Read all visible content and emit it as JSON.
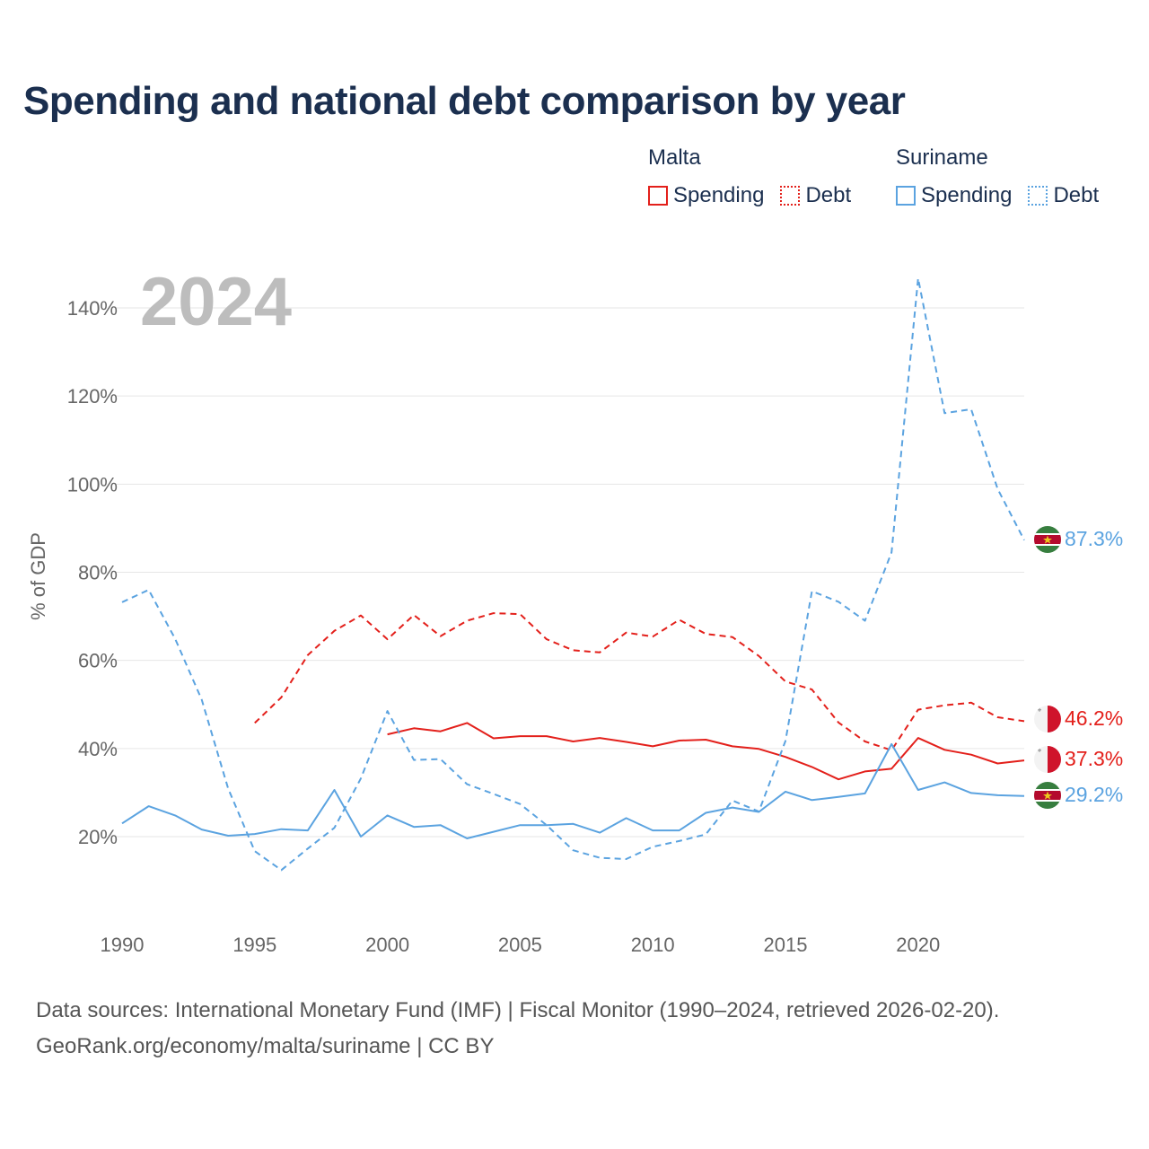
{
  "title": "Spending and national debt comparison by year",
  "legend": {
    "groups": [
      {
        "country": "Malta",
        "items": [
          {
            "label": "Spending",
            "style": "solid"
          },
          {
            "label": "Debt",
            "style": "dotted"
          }
        ],
        "color": "#e3201b"
      },
      {
        "country": "Suriname",
        "items": [
          {
            "label": "Spending",
            "style": "solid"
          },
          {
            "label": "Debt",
            "style": "dotted"
          }
        ],
        "color": "#5ba3e0"
      }
    ]
  },
  "year_watermark": "2024",
  "footer": {
    "line1": "Data sources: International Monetary Fund (IMF) | Fiscal Monitor (1990–2024, retrieved 2026-02-20).",
    "line2": "GeoRank.org/economy/malta/suriname | CC BY"
  },
  "chart_data": {
    "type": "line",
    "ylabel": "% of GDP",
    "xlabel": "",
    "xlim": [
      1990,
      2024
    ],
    "ylim": [
      0,
      150
    ],
    "x_ticks": [
      1990,
      1995,
      2000,
      2005,
      2010,
      2015,
      2020
    ],
    "y_ticks": [
      20,
      40,
      60,
      80,
      100,
      120,
      140
    ],
    "y_tick_labels": [
      "20%",
      "40%",
      "60%",
      "80%",
      "100%",
      "120%",
      "140%"
    ],
    "grid": true,
    "series": [
      {
        "name": "Malta Spending",
        "country": "Malta",
        "metric": "Spending",
        "color": "#e3201b",
        "dash": "solid",
        "x": [
          2000,
          2001,
          2002,
          2003,
          2004,
          2005,
          2006,
          2007,
          2008,
          2009,
          2010,
          2011,
          2012,
          2013,
          2014,
          2015,
          2016,
          2017,
          2018,
          2019,
          2020,
          2021,
          2022,
          2023,
          2024
        ],
        "values": [
          43.2,
          44.6,
          43.9,
          45.8,
          42.3,
          42.8,
          42.8,
          41.6,
          42.4,
          41.5,
          40.5,
          41.8,
          42.0,
          40.5,
          39.9,
          38.1,
          35.8,
          33.0,
          34.8,
          35.4,
          42.4,
          39.7,
          38.6,
          36.6,
          37.3
        ],
        "end_label": "37.3%"
      },
      {
        "name": "Malta Debt",
        "country": "Malta",
        "metric": "Debt",
        "color": "#e3201b",
        "dash": "dashed",
        "x": [
          1995,
          1996,
          1997,
          1998,
          1999,
          2000,
          2001,
          2002,
          2003,
          2004,
          2005,
          2006,
          2007,
          2008,
          2009,
          2010,
          2011,
          2012,
          2013,
          2014,
          2015,
          2016,
          2017,
          2018,
          2019,
          2020,
          2021,
          2022,
          2023,
          2024
        ],
        "values": [
          45.8,
          51.6,
          61.2,
          66.7,
          70.2,
          64.8,
          70.3,
          65.5,
          69.0,
          70.7,
          70.5,
          64.8,
          62.3,
          61.8,
          66.3,
          65.4,
          69.2,
          66.0,
          65.3,
          61.0,
          55.2,
          53.4,
          45.9,
          41.6,
          39.6,
          48.8,
          49.8,
          50.4,
          47.1,
          46.2
        ],
        "end_label": "46.2%"
      },
      {
        "name": "Suriname Spending",
        "country": "Suriname",
        "metric": "Spending",
        "color": "#5ba3e0",
        "dash": "solid",
        "x": [
          1990,
          1991,
          1992,
          1993,
          1994,
          1995,
          1996,
          1997,
          1998,
          1999,
          2000,
          2001,
          2002,
          2003,
          2004,
          2005,
          2006,
          2007,
          2008,
          2009,
          2010,
          2011,
          2012,
          2013,
          2014,
          2015,
          2016,
          2017,
          2018,
          2019,
          2020,
          2021,
          2022,
          2023,
          2024
        ],
        "values": [
          23.0,
          26.9,
          24.8,
          21.6,
          20.2,
          20.6,
          21.7,
          21.4,
          30.6,
          20.0,
          24.8,
          22.2,
          22.6,
          19.6,
          21.1,
          22.6,
          22.6,
          22.9,
          20.9,
          24.2,
          21.4,
          21.4,
          25.4,
          26.6,
          25.6,
          30.2,
          28.3,
          29.0,
          29.8,
          41.0,
          30.6,
          32.3,
          29.9,
          29.4,
          29.2
        ],
        "end_label": "29.2%"
      },
      {
        "name": "Suriname Debt",
        "country": "Suriname",
        "metric": "Debt",
        "color": "#5ba3e0",
        "dash": "dashed",
        "x": [
          1990,
          1991,
          1992,
          1993,
          1994,
          1995,
          1996,
          1997,
          1998,
          1999,
          2000,
          2001,
          2002,
          2003,
          2004,
          2005,
          2006,
          2007,
          2008,
          2009,
          2010,
          2011,
          2012,
          2013,
          2014,
          2015,
          2016,
          2017,
          2018,
          2019,
          2020,
          2021,
          2022,
          2023,
          2024
        ],
        "values": [
          73.2,
          76.0,
          64.9,
          51.1,
          30.9,
          16.7,
          12.4,
          17.3,
          22.0,
          33.2,
          48.5,
          37.4,
          37.6,
          31.9,
          29.7,
          27.4,
          22.6,
          16.9,
          15.2,
          14.9,
          17.7,
          19.0,
          20.5,
          28.2,
          25.7,
          41.7,
          75.7,
          73.3,
          69.0,
          84.5,
          146.7,
          116.1,
          117.0,
          98.9,
          87.3
        ],
        "end_label": "87.3%"
      }
    ]
  }
}
